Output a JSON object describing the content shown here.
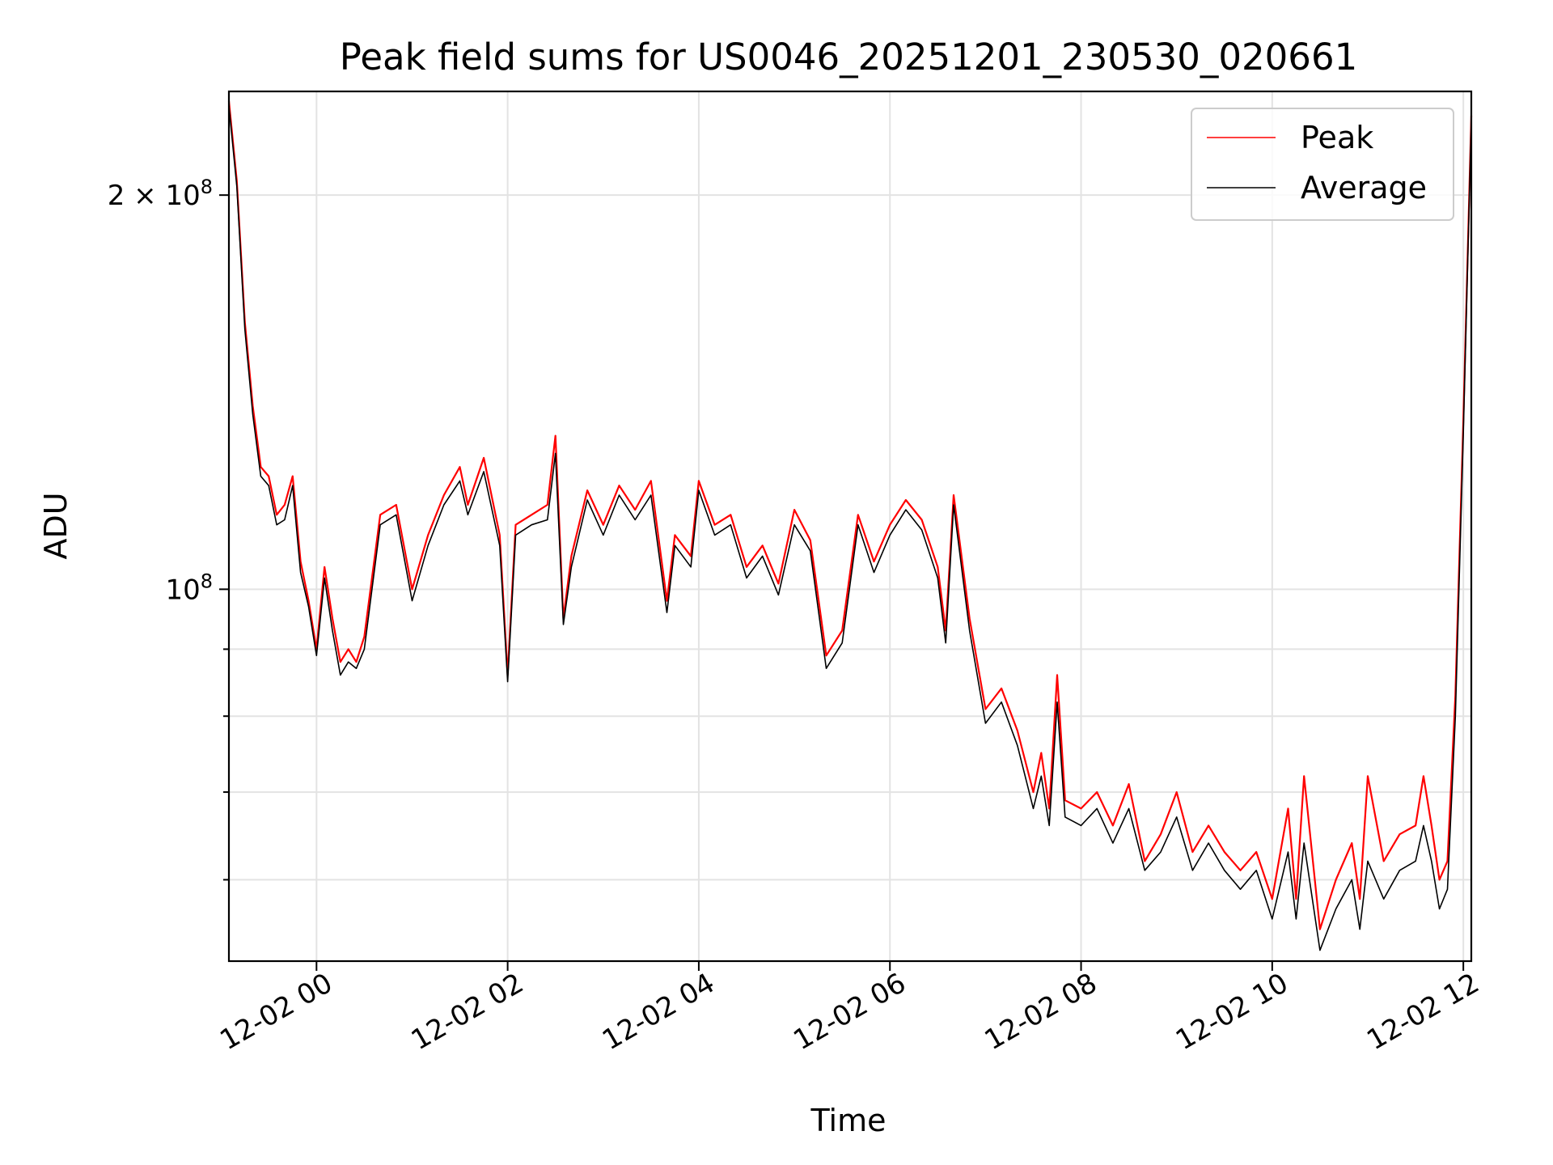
{
  "chart_data": {
    "type": "line",
    "title": "Peak field sums for US0046_20251201_230530_020661",
    "xlabel": "Time",
    "ylabel": "ADU",
    "yscale": "log",
    "xlim": [
      "2025-12-01T23:05",
      "2025-12-02T12:05"
    ],
    "ylim": [
      52000000,
      240000000
    ],
    "x_ticks": [
      {
        "label": "12-02 00",
        "value": "2025-12-02T00:00"
      },
      {
        "label": "12-02 02",
        "value": "2025-12-02T02:00"
      },
      {
        "label": "12-02 04",
        "value": "2025-12-02T04:00"
      },
      {
        "label": "12-02 06",
        "value": "2025-12-02T06:00"
      },
      {
        "label": "12-02 08",
        "value": "2025-12-02T08:00"
      },
      {
        "label": "12-02 10",
        "value": "2025-12-02T10:00"
      },
      {
        "label": "12-02 12",
        "value": "2025-12-02T12:00"
      }
    ],
    "y_ticks": [
      {
        "label_base": "10",
        "label_exp": "8",
        "value": 100000000
      },
      {
        "label_base": "2 × 10",
        "label_exp": "8",
        "value": 200000000
      }
    ],
    "y_minor_ticks": [
      60000000,
      70000000,
      80000000,
      90000000
    ],
    "grid": true,
    "legend_position": "top-right",
    "series": [
      {
        "name": "Peak",
        "color": "#ff0000",
        "x": [
          "2025-12-01T23:05",
          "2025-12-01T23:10",
          "2025-12-01T23:15",
          "2025-12-01T23:20",
          "2025-12-01T23:25",
          "2025-12-01T23:30",
          "2025-12-01T23:35",
          "2025-12-01T23:40",
          "2025-12-01T23:45",
          "2025-12-01T23:50",
          "2025-12-01T23:55",
          "2025-12-02T00:00",
          "2025-12-02T00:05",
          "2025-12-02T00:10",
          "2025-12-02T00:15",
          "2025-12-02T00:20",
          "2025-12-02T00:25",
          "2025-12-02T00:30",
          "2025-12-02T00:40",
          "2025-12-02T00:50",
          "2025-12-02T01:00",
          "2025-12-02T01:10",
          "2025-12-02T01:20",
          "2025-12-02T01:30",
          "2025-12-02T01:35",
          "2025-12-02T01:45",
          "2025-12-02T01:55",
          "2025-12-02T02:00",
          "2025-12-02T02:05",
          "2025-12-02T02:15",
          "2025-12-02T02:25",
          "2025-12-02T02:30",
          "2025-12-02T02:35",
          "2025-12-02T02:40",
          "2025-12-02T02:50",
          "2025-12-02T03:00",
          "2025-12-02T03:10",
          "2025-12-02T03:20",
          "2025-12-02T03:30",
          "2025-12-02T03:40",
          "2025-12-02T03:45",
          "2025-12-02T03:55",
          "2025-12-02T04:00",
          "2025-12-02T04:10",
          "2025-12-02T04:20",
          "2025-12-02T04:30",
          "2025-12-02T04:40",
          "2025-12-02T04:50",
          "2025-12-02T05:00",
          "2025-12-02T05:10",
          "2025-12-02T05:20",
          "2025-12-02T05:30",
          "2025-12-02T05:40",
          "2025-12-02T05:50",
          "2025-12-02T06:00",
          "2025-12-02T06:10",
          "2025-12-02T06:20",
          "2025-12-02T06:30",
          "2025-12-02T06:35",
          "2025-12-02T06:40",
          "2025-12-02T06:50",
          "2025-12-02T07:00",
          "2025-12-02T07:10",
          "2025-12-02T07:20",
          "2025-12-02T07:30",
          "2025-12-02T07:35",
          "2025-12-02T07:40",
          "2025-12-02T07:45",
          "2025-12-02T07:50",
          "2025-12-02T08:00",
          "2025-12-02T08:10",
          "2025-12-02T08:20",
          "2025-12-02T08:30",
          "2025-12-02T08:40",
          "2025-12-02T08:50",
          "2025-12-02T09:00",
          "2025-12-02T09:10",
          "2025-12-02T09:20",
          "2025-12-02T09:30",
          "2025-12-02T09:40",
          "2025-12-02T09:50",
          "2025-12-02T10:00",
          "2025-12-02T10:10",
          "2025-12-02T10:15",
          "2025-12-02T10:20",
          "2025-12-02T10:30",
          "2025-12-02T10:40",
          "2025-12-02T10:50",
          "2025-12-02T10:55",
          "2025-12-02T11:00",
          "2025-12-02T11:10",
          "2025-12-02T11:20",
          "2025-12-02T11:30",
          "2025-12-02T11:35",
          "2025-12-02T11:40",
          "2025-12-02T11:45",
          "2025-12-02T11:50",
          "2025-12-02T11:55",
          "2025-12-02T12:00",
          "2025-12-02T12:05"
        ],
        "y": [
          236000000,
          205000000,
          160000000,
          138000000,
          124000000,
          122000000,
          114000000,
          116000000,
          122000000,
          105000000,
          98000000,
          90000000,
          104000000,
          95000000,
          88000000,
          90000000,
          88000000,
          92000000,
          114000000,
          116000000,
          100000000,
          110000000,
          118000000,
          124000000,
          116000000,
          126000000,
          110000000,
          86000000,
          112000000,
          114000000,
          116000000,
          131000000,
          95000000,
          106000000,
          119000000,
          112000000,
          120000000,
          115000000,
          121000000,
          98000000,
          110000000,
          106000000,
          121000000,
          112000000,
          114000000,
          104000000,
          108000000,
          101000000,
          115000000,
          109000000,
          89000000,
          93000000,
          114000000,
          105000000,
          112000000,
          117000000,
          113000000,
          104000000,
          93000000,
          118000000,
          95000000,
          81000000,
          84000000,
          78000000,
          70000000,
          75000000,
          68000000,
          86000000,
          69000000,
          68000000,
          70000000,
          66000000,
          71000000,
          62000000,
          65000000,
          70000000,
          63000000,
          66000000,
          63000000,
          61000000,
          63000000,
          58000000,
          68000000,
          58000000,
          72000000,
          55000000,
          60000000,
          64000000,
          58000000,
          72000000,
          62000000,
          65000000,
          66000000,
          72000000,
          66000000,
          60000000,
          62000000,
          83000000,
          135000000,
          230000000
        ]
      },
      {
        "name": "Average",
        "color": "#000000",
        "x": [
          "2025-12-01T23:05",
          "2025-12-01T23:10",
          "2025-12-01T23:15",
          "2025-12-01T23:20",
          "2025-12-01T23:25",
          "2025-12-01T23:30",
          "2025-12-01T23:35",
          "2025-12-01T23:40",
          "2025-12-01T23:45",
          "2025-12-01T23:50",
          "2025-12-01T23:55",
          "2025-12-02T00:00",
          "2025-12-02T00:05",
          "2025-12-02T00:10",
          "2025-12-02T00:15",
          "2025-12-02T00:20",
          "2025-12-02T00:25",
          "2025-12-02T00:30",
          "2025-12-02T00:40",
          "2025-12-02T00:50",
          "2025-12-02T01:00",
          "2025-12-02T01:10",
          "2025-12-02T01:20",
          "2025-12-02T01:30",
          "2025-12-02T01:35",
          "2025-12-02T01:45",
          "2025-12-02T01:55",
          "2025-12-02T02:00",
          "2025-12-02T02:05",
          "2025-12-02T02:15",
          "2025-12-02T02:25",
          "2025-12-02T02:30",
          "2025-12-02T02:35",
          "2025-12-02T02:40",
          "2025-12-02T02:50",
          "2025-12-02T03:00",
          "2025-12-02T03:10",
          "2025-12-02T03:20",
          "2025-12-02T03:30",
          "2025-12-02T03:40",
          "2025-12-02T03:45",
          "2025-12-02T03:55",
          "2025-12-02T04:00",
          "2025-12-02T04:10",
          "2025-12-02T04:20",
          "2025-12-02T04:30",
          "2025-12-02T04:40",
          "2025-12-02T04:50",
          "2025-12-02T05:00",
          "2025-12-02T05:10",
          "2025-12-02T05:20",
          "2025-12-02T05:30",
          "2025-12-02T05:40",
          "2025-12-02T05:50",
          "2025-12-02T06:00",
          "2025-12-02T06:10",
          "2025-12-02T06:20",
          "2025-12-02T06:30",
          "2025-12-02T06:35",
          "2025-12-02T06:40",
          "2025-12-02T06:50",
          "2025-12-02T07:00",
          "2025-12-02T07:10",
          "2025-12-02T07:20",
          "2025-12-02T07:30",
          "2025-12-02T07:35",
          "2025-12-02T07:40",
          "2025-12-02T07:45",
          "2025-12-02T07:50",
          "2025-12-02T08:00",
          "2025-12-02T08:10",
          "2025-12-02T08:20",
          "2025-12-02T08:30",
          "2025-12-02T08:40",
          "2025-12-02T08:50",
          "2025-12-02T09:00",
          "2025-12-02T09:10",
          "2025-12-02T09:20",
          "2025-12-02T09:30",
          "2025-12-02T09:40",
          "2025-12-02T09:50",
          "2025-12-02T10:00",
          "2025-12-02T10:10",
          "2025-12-02T10:15",
          "2025-12-02T10:20",
          "2025-12-02T10:30",
          "2025-12-02T10:40",
          "2025-12-02T10:50",
          "2025-12-02T10:55",
          "2025-12-02T11:00",
          "2025-12-02T11:10",
          "2025-12-02T11:20",
          "2025-12-02T11:30",
          "2025-12-02T11:35",
          "2025-12-02T11:40",
          "2025-12-02T11:45",
          "2025-12-02T11:50",
          "2025-12-02T11:55",
          "2025-12-02T12:00",
          "2025-12-02T12:05"
        ],
        "y": [
          234000000,
          203000000,
          158000000,
          136000000,
          122000000,
          120000000,
          112000000,
          113000000,
          120000000,
          103000000,
          97000000,
          89000000,
          102000000,
          93000000,
          86000000,
          88000000,
          87000000,
          90000000,
          112000000,
          114000000,
          98000000,
          108000000,
          116000000,
          121000000,
          114000000,
          123000000,
          108000000,
          85000000,
          110000000,
          112000000,
          113000000,
          127000000,
          94000000,
          104000000,
          117000000,
          110000000,
          118000000,
          113000000,
          118000000,
          96000000,
          108000000,
          104000000,
          119000000,
          110000000,
          112000000,
          102000000,
          106000000,
          99000000,
          112000000,
          107000000,
          87000000,
          91000000,
          112000000,
          103000000,
          110000000,
          115000000,
          111000000,
          102000000,
          91000000,
          116000000,
          93000000,
          79000000,
          82000000,
          76000000,
          68000000,
          72000000,
          66000000,
          82000000,
          67000000,
          66000000,
          68000000,
          64000000,
          68000000,
          61000000,
          63000000,
          67000000,
          61000000,
          64000000,
          61000000,
          59000000,
          61000000,
          56000000,
          63000000,
          56000000,
          64000000,
          53000000,
          57000000,
          60000000,
          55000000,
          62000000,
          58000000,
          61000000,
          62000000,
          66000000,
          62000000,
          57000000,
          59000000,
          80000000,
          132000000,
          228000000
        ]
      }
    ]
  }
}
